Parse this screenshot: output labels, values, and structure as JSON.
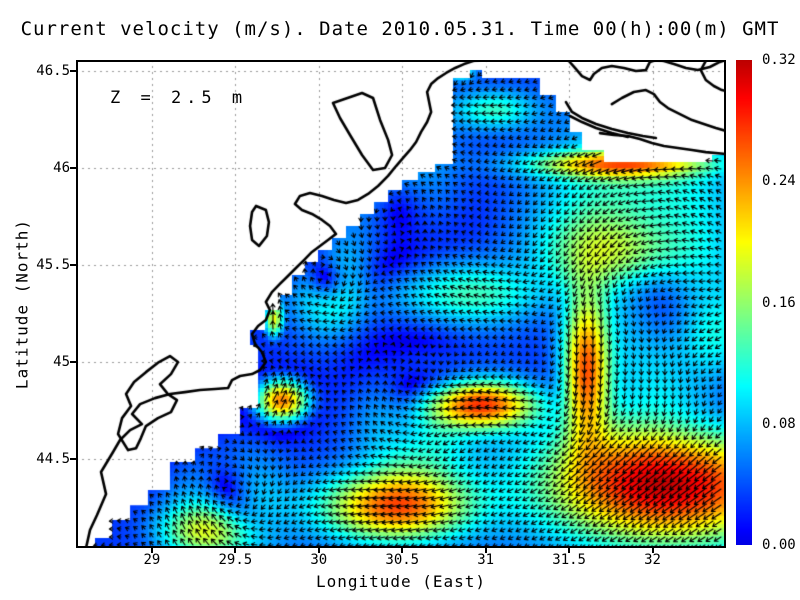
{
  "title": "Current velocity (m/s). Date 2010.05.31. Time 00(h):00(m) GMT",
  "annotation": {
    "text": "Z = 2.5 m"
  },
  "axes": {
    "xlabel": "Longitude (East)",
    "ylabel": "Latitude (North)",
    "xlim": [
      28.545,
      32.44
    ],
    "ylim": [
      44.04,
      46.557
    ],
    "x_ticks": [
      {
        "v": 29,
        "label": "29"
      },
      {
        "v": 29.5,
        "label": "29.5"
      },
      {
        "v": 30,
        "label": "30"
      },
      {
        "v": 30.5,
        "label": "30.5"
      },
      {
        "v": 31,
        "label": "31"
      },
      {
        "v": 31.5,
        "label": "31.5"
      },
      {
        "v": 32,
        "label": "32"
      }
    ],
    "y_ticks": [
      {
        "v": 46.5,
        "label": "46.5"
      },
      {
        "v": 46,
        "label": "46"
      },
      {
        "v": 45.5,
        "label": "45.5"
      },
      {
        "v": 45,
        "label": "45"
      },
      {
        "v": 44.5,
        "label": "44.5"
      }
    ],
    "grid": true
  },
  "colorbar": {
    "min": 0.0,
    "max": 0.32,
    "tick_labels": [
      "0.32",
      "0.24",
      "0.16",
      "0.08",
      "0.00"
    ],
    "colormap": "jet",
    "orientation": "vertical-right"
  },
  "colors": {
    "land": "#ffffff",
    "coastline": "#000000",
    "grid": "#999999",
    "arrows": "#000000",
    "frame": "#000000"
  },
  "chart_data": {
    "type": "heatmap",
    "title": "Current velocity (m/s). Date 2010.05.31. Time 00(h):00(m) GMT",
    "xlabel": "Longitude (East)",
    "ylabel": "Latitude (North)",
    "variable": "sea current speed (m/s) with velocity vector overlay (quiver)",
    "region": "northwestern Black Sea shelf (Danube delta to Dnieper estuary)",
    "depth_m": 2.5,
    "date": "2010.05.31",
    "time_gmt": "00:00",
    "value_range": [
      0.0,
      0.32
    ],
    "background_drift": [
      -0.03,
      -0.01
    ],
    "jets": [
      {
        "c": [
          32.1,
          44.38
        ],
        "s": [
          0.75,
          0.32
        ],
        "amp": 0.3,
        "dir": 215
      },
      {
        "c": [
          30.95,
          44.78
        ],
        "s": [
          0.35,
          0.13
        ],
        "amp": 0.26,
        "dir": 160
      },
      {
        "c": [
          29.78,
          44.8
        ],
        "s": [
          0.17,
          0.12
        ],
        "amp": 0.27,
        "dir": 60
      },
      {
        "c": [
          31.6,
          44.95
        ],
        "s": [
          0.14,
          0.38
        ],
        "amp": 0.22,
        "dir": 265
      },
      {
        "c": [
          30.45,
          44.25
        ],
        "s": [
          0.45,
          0.18
        ],
        "amp": 0.22,
        "dir": 190
      },
      {
        "c": [
          31.8,
          46.02
        ],
        "s": [
          0.55,
          0.07
        ],
        "amp": 0.16,
        "dir": 200
      },
      {
        "c": [
          30.9,
          45.35
        ],
        "s": [
          0.6,
          0.18
        ],
        "amp": 0.11,
        "dir": 150
      },
      {
        "c": [
          29.35,
          44.12
        ],
        "s": [
          0.35,
          0.14
        ],
        "amp": 0.13,
        "dir": 95
      },
      {
        "c": [
          32.4,
          45.1
        ],
        "s": [
          0.25,
          0.4
        ],
        "amp": 0.13,
        "dir": 250
      },
      {
        "c": [
          29.73,
          45.22
        ],
        "s": [
          0.06,
          0.1
        ],
        "amp": 0.2,
        "dir": 80
      },
      {
        "c": [
          31.9,
          45.55
        ],
        "s": [
          0.5,
          0.2
        ],
        "amp": 0.12,
        "dir": 210
      },
      {
        "c": [
          31.05,
          46.3
        ],
        "s": [
          0.25,
          0.1
        ],
        "amp": 0.09,
        "dir": 180
      },
      {
        "c": [
          30.85,
          46.5
        ],
        "s": [
          0.1,
          0.06
        ],
        "amp": 0.1,
        "dir": 270
      }
    ],
    "eddies": [
      {
        "c": [
          29.45,
          44.3
        ],
        "r": 0.3,
        "amp": 0.1,
        "sgn": -1
      },
      {
        "c": [
          30.05,
          45.4
        ],
        "r": 0.2,
        "amp": 0.09,
        "sgn": -1
      },
      {
        "c": [
          31.95,
          45.6
        ],
        "r": 0.5,
        "amp": 0.12,
        "sgn": 1
      },
      {
        "c": [
          30.55,
          44.72
        ],
        "r": 0.3,
        "amp": 0.09,
        "sgn": -1
      },
      {
        "c": [
          32.25,
          44.95
        ],
        "r": 0.38,
        "amp": 0.1,
        "sgn": 1
      },
      {
        "c": [
          30.45,
          45.85
        ],
        "r": 0.35,
        "amp": 0.07,
        "sgn": 1
      }
    ],
    "sea_polygon_lonlat": [
      [
        28.659,
        44.04
      ],
      [
        28.659,
        44.091
      ],
      [
        28.761,
        44.091
      ],
      [
        28.761,
        44.184
      ],
      [
        28.869,
        44.184
      ],
      [
        28.869,
        44.261
      ],
      [
        28.976,
        44.261
      ],
      [
        28.976,
        44.339
      ],
      [
        29.108,
        44.339
      ],
      [
        29.108,
        44.483
      ],
      [
        29.258,
        44.483
      ],
      [
        29.258,
        44.555
      ],
      [
        29.396,
        44.555
      ],
      [
        29.396,
        44.628
      ],
      [
        29.528,
        44.628
      ],
      [
        29.528,
        44.762
      ],
      [
        29.636,
        44.762
      ],
      [
        29.636,
        45.087
      ],
      [
        29.588,
        45.087
      ],
      [
        29.588,
        45.164
      ],
      [
        29.678,
        45.164
      ],
      [
        29.678,
        45.267
      ],
      [
        29.767,
        45.267
      ],
      [
        29.767,
        45.345
      ],
      [
        29.839,
        45.345
      ],
      [
        29.839,
        45.448
      ],
      [
        29.917,
        45.448
      ],
      [
        29.917,
        45.515
      ],
      [
        29.995,
        45.515
      ],
      [
        29.995,
        45.577
      ],
      [
        30.079,
        45.577
      ],
      [
        30.079,
        45.639
      ],
      [
        30.163,
        45.639
      ],
      [
        30.163,
        45.701
      ],
      [
        30.247,
        45.701
      ],
      [
        30.247,
        45.763
      ],
      [
        30.331,
        45.763
      ],
      [
        30.331,
        45.825
      ],
      [
        30.415,
        45.825
      ],
      [
        30.415,
        45.887
      ],
      [
        30.498,
        45.887
      ],
      [
        30.498,
        45.938
      ],
      [
        30.594,
        45.938
      ],
      [
        30.594,
        45.979
      ],
      [
        30.696,
        45.979
      ],
      [
        30.696,
        46.021
      ],
      [
        30.804,
        46.021
      ],
      [
        30.804,
        46.464
      ],
      [
        30.906,
        46.464
      ],
      [
        30.906,
        46.505
      ],
      [
        30.978,
        46.505
      ],
      [
        30.978,
        46.464
      ],
      [
        31.325,
        46.464
      ],
      [
        31.325,
        46.376
      ],
      [
        31.421,
        46.376
      ],
      [
        31.421,
        46.289
      ],
      [
        31.505,
        46.289
      ],
      [
        31.505,
        46.186
      ],
      [
        31.577,
        46.186
      ],
      [
        31.577,
        46.093
      ],
      [
        31.709,
        46.093
      ],
      [
        31.709,
        46.031
      ],
      [
        32.356,
        46.031
      ],
      [
        32.356,
        46.067
      ],
      [
        32.44,
        46.067
      ],
      [
        32.44,
        44.04
      ]
    ],
    "coastlines_lonlat": [
      [
        [
          28.605,
          44.04
        ],
        [
          28.629,
          44.133
        ],
        [
          28.671,
          44.21
        ],
        [
          28.725,
          44.318
        ],
        [
          28.695,
          44.432
        ],
        [
          28.767,
          44.535
        ],
        [
          28.809,
          44.597
        ],
        [
          28.869,
          44.648
        ],
        [
          28.94,
          44.679
        ],
        [
          28.881,
          44.731
        ],
        [
          28.929,
          44.782
        ],
        [
          29.018,
          44.813
        ],
        [
          29.108,
          44.834
        ],
        [
          29.198,
          44.844
        ],
        [
          29.288,
          44.855
        ],
        [
          29.378,
          44.86
        ],
        [
          29.456,
          44.865
        ],
        [
          29.48,
          44.906
        ],
        [
          29.528,
          44.927
        ],
        [
          29.6,
          44.937
        ],
        [
          29.648,
          44.958
        ],
        [
          29.683,
          44.999
        ],
        [
          29.659,
          45.051
        ],
        [
          29.618,
          45.092
        ],
        [
          29.6,
          45.144
        ],
        [
          29.636,
          45.185
        ],
        [
          29.683,
          45.216
        ],
        [
          29.707,
          45.267
        ],
        [
          29.683,
          45.309
        ],
        [
          29.719,
          45.36
        ],
        [
          29.767,
          45.402
        ],
        [
          29.815,
          45.443
        ],
        [
          29.863,
          45.484
        ],
        [
          29.911,
          45.525
        ],
        [
          29.959,
          45.567
        ],
        [
          30.007,
          45.598
        ],
        [
          30.055,
          45.629
        ],
        [
          30.103,
          45.66
        ],
        [
          30.067,
          45.701
        ],
        [
          30.019,
          45.732
        ],
        [
          29.959,
          45.763
        ],
        [
          29.899,
          45.783
        ],
        [
          29.857,
          45.814
        ],
        [
          29.887,
          45.856
        ],
        [
          29.947,
          45.871
        ],
        [
          30.019,
          45.856
        ],
        [
          30.091,
          45.835
        ],
        [
          30.163,
          45.82
        ],
        [
          30.235,
          45.835
        ],
        [
          30.295,
          45.866
        ],
        [
          30.355,
          45.907
        ],
        [
          30.415,
          45.959
        ],
        [
          30.463,
          46.01
        ],
        [
          30.505,
          46.052
        ],
        [
          30.547,
          46.093
        ],
        [
          30.583,
          46.134
        ],
        [
          30.613,
          46.186
        ],
        [
          30.649,
          46.237
        ],
        [
          30.673,
          46.289
        ],
        [
          30.661,
          46.34
        ],
        [
          30.649,
          46.392
        ],
        [
          30.673,
          46.433
        ],
        [
          30.715,
          46.464
        ],
        [
          30.763,
          46.49
        ],
        [
          30.817,
          46.516
        ],
        [
          30.87,
          46.536
        ],
        [
          30.924,
          46.552
        ],
        [
          30.966,
          46.557
        ]
      ],
      [
        [
          28.857,
          44.545
        ],
        [
          28.797,
          44.628
        ],
        [
          28.821,
          44.71
        ],
        [
          28.875,
          44.772
        ],
        [
          28.845,
          44.834
        ],
        [
          28.893,
          44.896
        ],
        [
          28.964,
          44.947
        ],
        [
          29.042,
          44.999
        ],
        [
          29.108,
          45.03
        ],
        [
          29.156,
          44.999
        ],
        [
          29.114,
          44.937
        ],
        [
          29.048,
          44.885
        ],
        [
          29.096,
          44.834
        ],
        [
          29.15,
          44.803
        ],
        [
          29.114,
          44.741
        ],
        [
          29.036,
          44.71
        ],
        [
          28.964,
          44.669
        ],
        [
          28.934,
          44.607
        ],
        [
          28.905,
          44.555
        ],
        [
          28.857,
          44.545
        ]
      ],
      [
        [
          29.624,
          45.804
        ],
        [
          29.683,
          45.783
        ],
        [
          29.701,
          45.721
        ],
        [
          29.689,
          45.649
        ],
        [
          29.642,
          45.598
        ],
        [
          29.6,
          45.629
        ],
        [
          29.588,
          45.701
        ],
        [
          29.6,
          45.773
        ],
        [
          29.624,
          45.804
        ]
      ],
      [
        [
          30.085,
          46.335
        ],
        [
          30.259,
          46.387
        ],
        [
          30.325,
          46.361
        ],
        [
          30.367,
          46.248
        ],
        [
          30.415,
          46.145
        ],
        [
          30.439,
          46.067
        ],
        [
          30.397,
          46.0
        ],
        [
          30.325,
          45.99
        ],
        [
          30.259,
          46.067
        ],
        [
          30.187,
          46.17
        ],
        [
          30.127,
          46.258
        ],
        [
          30.085,
          46.335
        ]
      ],
      [
        [
          31.493,
          46.557
        ],
        [
          31.535,
          46.516
        ],
        [
          31.577,
          46.474
        ],
        [
          31.625,
          46.454
        ],
        [
          31.648,
          46.485
        ],
        [
          31.696,
          46.516
        ],
        [
          31.756,
          46.526
        ],
        [
          31.828,
          46.516
        ],
        [
          31.9,
          46.5
        ],
        [
          31.96,
          46.505
        ],
        [
          31.984,
          46.547
        ],
        [
          32.02,
          46.557
        ],
        [
          32.068,
          46.552
        ],
        [
          32.128,
          46.536
        ],
        [
          32.2,
          46.516
        ],
        [
          32.271,
          46.505
        ],
        [
          32.343,
          46.521
        ],
        [
          32.403,
          46.547
        ],
        [
          32.44,
          46.557
        ]
      ],
      [
        [
          32.319,
          46.552
        ],
        [
          32.289,
          46.505
        ],
        [
          32.319,
          46.454
        ],
        [
          32.367,
          46.423
        ],
        [
          32.415,
          46.402
        ],
        [
          32.44,
          46.397
        ]
      ],
      [
        [
          31.685,
          46.18
        ],
        [
          31.768,
          46.17
        ],
        [
          31.852,
          46.165
        ],
        [
          31.924,
          46.149
        ],
        [
          31.996,
          46.129
        ],
        [
          32.068,
          46.113
        ],
        [
          32.152,
          46.103
        ],
        [
          32.236,
          46.093
        ],
        [
          32.319,
          46.082
        ],
        [
          32.44,
          46.072
        ]
      ],
      [
        [
          31.756,
          46.33
        ],
        [
          31.816,
          46.361
        ],
        [
          31.888,
          46.392
        ],
        [
          31.96,
          46.402
        ],
        [
          32.008,
          46.381
        ],
        [
          32.044,
          46.34
        ],
        [
          32.092,
          46.309
        ],
        [
          32.164,
          46.278
        ],
        [
          32.236,
          46.247
        ],
        [
          32.307,
          46.227
        ],
        [
          32.379,
          46.206
        ],
        [
          32.44,
          46.191
        ]
      ],
      [
        [
          31.481,
          46.34
        ],
        [
          31.517,
          46.289
        ],
        [
          31.577,
          46.258
        ],
        [
          31.661,
          46.227
        ],
        [
          31.756,
          46.201
        ],
        [
          31.852,
          46.181
        ],
        [
          31.942,
          46.165
        ],
        [
          32.02,
          46.155
        ]
      ],
      [
        [
          31.505,
          46.268
        ],
        [
          31.577,
          46.237
        ],
        [
          31.661,
          46.206
        ],
        [
          31.756,
          46.181
        ],
        [
          31.852,
          46.16
        ]
      ]
    ]
  }
}
